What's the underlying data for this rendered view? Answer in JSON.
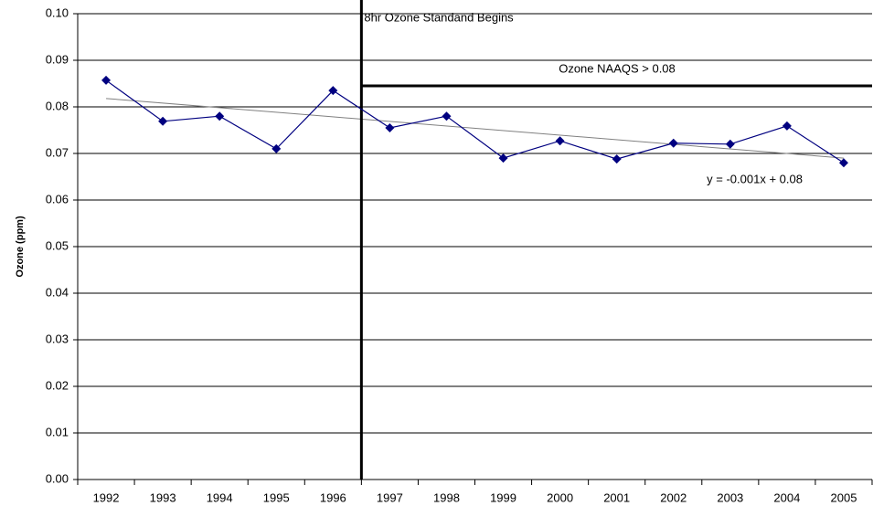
{
  "chart_data": {
    "type": "line",
    "y_label": "Ozone (ppm)",
    "categories": [
      "1992",
      "1993",
      "1994",
      "1995",
      "1996",
      "1997",
      "1998",
      "1999",
      "2000",
      "2001",
      "2002",
      "2003",
      "2004",
      "2005"
    ],
    "series": [
      {
        "name": "Ozone",
        "color": "#000080",
        "values": [
          0.0857,
          0.0769,
          0.078,
          0.071,
          0.0835,
          0.0755,
          0.078,
          0.069,
          0.0727,
          0.0688,
          0.0722,
          0.072,
          0.0759,
          0.068
        ]
      }
    ],
    "ylim": [
      0,
      0.1
    ],
    "yticks": [
      {
        "value": 0,
        "label": "0.00"
      },
      0.01,
      0.02,
      0.03,
      0.04,
      0.05,
      0.06,
      0.07,
      0.08,
      0.09,
      {
        "value": 0.1,
        "label": "0.10"
      }
    ],
    "grid": true,
    "trendline": {
      "label": "y = -0.001x + 0.08",
      "start": 0.0818,
      "end": 0.069,
      "color": "#808080"
    },
    "standard_line": {
      "label": "8hr Ozone Standand Begins",
      "after": "1996"
    },
    "naaqs": {
      "label": "Ozone NAAQS > 0.08",
      "value": 0.0845
    }
  }
}
